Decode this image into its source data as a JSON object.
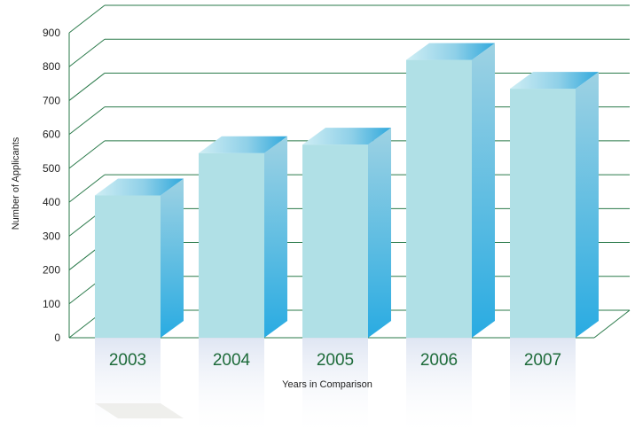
{
  "chart_data": {
    "type": "bar",
    "title": "",
    "xlabel": "Years in Comparison",
    "ylabel": "Number of Applicants",
    "categories": [
      "2003",
      "2004",
      "2005",
      "2006",
      "2007"
    ],
    "values": [
      420,
      545,
      570,
      820,
      735
    ],
    "ylim": [
      0,
      900
    ],
    "yticks": [
      0,
      100,
      200,
      300,
      400,
      500,
      600,
      700,
      800,
      900
    ],
    "grid": true,
    "legend": "none",
    "style": "3d-with-reflection",
    "colors": {
      "front": "#b0e0e6",
      "side_top": "#9ed2e3",
      "side_bottom": "#29abe2",
      "top_left": "#cfeef4",
      "top_right": "#30a8dc",
      "grid": "#2a7a4a",
      "category_text": "#1e6b3a"
    }
  }
}
